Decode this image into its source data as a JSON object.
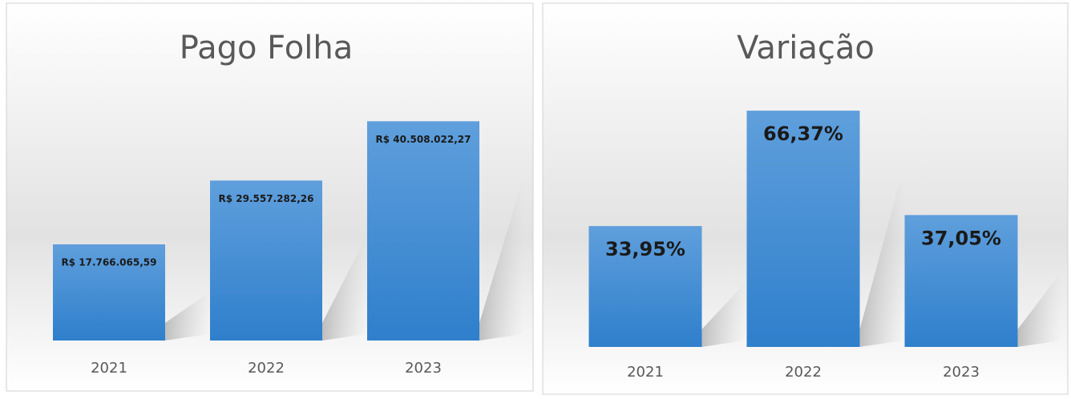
{
  "chart_data": [
    {
      "type": "bar",
      "title": "Pago Folha",
      "categories": [
        "2021",
        "2022",
        "2023"
      ],
      "values": [
        17766065.59,
        29557282.26,
        40508022.27
      ],
      "value_labels": [
        "R$ 17.766.065,59",
        "R$ 29.557.282,26",
        "R$ 40.508.022,27"
      ],
      "color": "#4a90d9",
      "ylim": [
        0,
        45000000
      ]
    },
    {
      "type": "bar",
      "title": "Variação",
      "categories": [
        "2021",
        "2022",
        "2023"
      ],
      "values": [
        33.95,
        66.37,
        37.05
      ],
      "value_labels": [
        "33,95%",
        "66,37%",
        "37,05%"
      ],
      "color": "#4a90d9",
      "ylim": [
        0,
        70
      ]
    }
  ]
}
